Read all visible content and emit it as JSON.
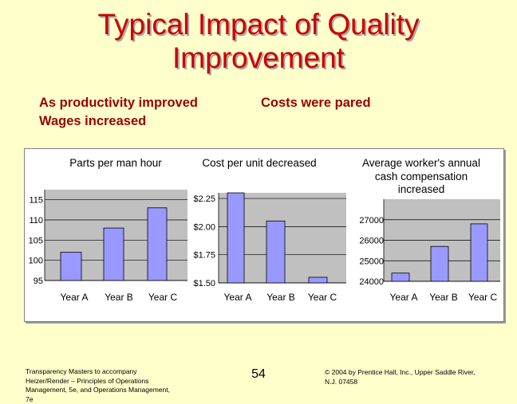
{
  "slide": {
    "title_line1": "Typical Impact of Quality",
    "title_line2": "Improvement",
    "subtitle_left_line1": "As productivity improved",
    "subtitle_left_line2": "Wages increased",
    "subtitle_right": "Costs were pared"
  },
  "footer": {
    "left_line1": "Transparency Masters to accompany",
    "left_line2": "Heizer/Render – Principles of Operations",
    "left_line3": "Management, 5e, and Operations Management,",
    "left_line4": "7e",
    "page_number": "54",
    "right_line1": "© 2004 by Prentice Hall, Inc., Upper Saddle River,",
    "right_line2": "N.J. 07458"
  },
  "colors": {
    "background": "#FFFFCC",
    "title": "#CC0000",
    "subtitle": "#990000",
    "bar_fill": "#9999FF",
    "plot_area": "#C0C0C0"
  },
  "chart_data": [
    {
      "type": "bar",
      "title": "Parts per man hour",
      "categories": [
        "Year A",
        "Year B",
        "Year C"
      ],
      "values": [
        102,
        108,
        113
      ],
      "ylim": [
        95,
        117.5
      ],
      "ytick_labels": [
        "95",
        "100",
        "105",
        "110",
        "115"
      ],
      "ytick_values": [
        95,
        100,
        105,
        110,
        115
      ]
    },
    {
      "type": "bar",
      "title": "Cost per unit decreased",
      "categories": [
        "Year A",
        "Year B",
        "Year C"
      ],
      "values": [
        2.3,
        2.05,
        1.55
      ],
      "ylim": [
        1.5,
        2.3
      ],
      "ytick_labels": [
        "$1.50",
        "$1.75",
        "$2.00",
        "$2.25"
      ],
      "ytick_values": [
        1.5,
        1.75,
        2.0,
        2.25
      ]
    },
    {
      "type": "bar",
      "title_lines": [
        "Average worker's annual",
        "cash compensation",
        "increased"
      ],
      "categories": [
        "Year A",
        "Year B",
        "Year C"
      ],
      "values": [
        24400,
        25700,
        26800
      ],
      "ylim": [
        24000,
        28000
      ],
      "ytick_labels": [
        "24000",
        "25000",
        "26000",
        "27000"
      ],
      "ytick_values": [
        24000,
        25000,
        26000,
        27000
      ]
    }
  ]
}
